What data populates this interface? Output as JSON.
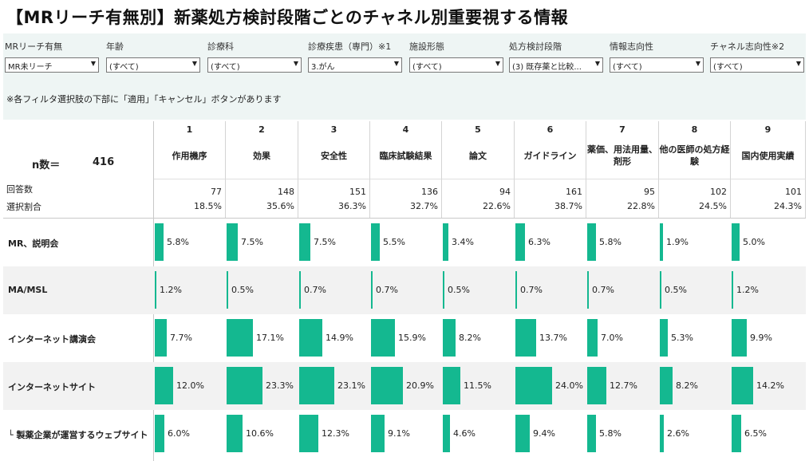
{
  "title": "【MRリーチ有無別】新薬処方検討段階ごとのチャネル別重要視する情報",
  "filters": [
    {
      "label": "MRリーチ有無",
      "value": "MR未リーチ"
    },
    {
      "label": "年齢",
      "value": "(すべて)"
    },
    {
      "label": "診療科",
      "value": "(すべて)"
    },
    {
      "label": "診療疾患（専門）※1",
      "value": "3.がん"
    },
    {
      "label": "施設形態",
      "value": "(すべて)"
    },
    {
      "label": "処方検討段階",
      "value": "(3) 既存薬と比較..."
    },
    {
      "label": "情報志向性",
      "value": "(すべて)"
    },
    {
      "label": "チャネル志向性※2",
      "value": "(すべて)"
    }
  ],
  "dropdown_arrow": "▼",
  "note": "※各フィルタ選択肢の下部に「適用」「キャンセル」ボタンがあります",
  "n_label": "n数＝",
  "n_value": "416",
  "respondents_label": "回答数",
  "ratio_label": "選択割合",
  "bar_color": "#14b890",
  "columns": [
    {
      "num": "1",
      "name": "作用機序",
      "count": "77",
      "ratio": "18.5%"
    },
    {
      "num": "2",
      "name": "効果",
      "count": "148",
      "ratio": "35.6%"
    },
    {
      "num": "3",
      "name": "安全性",
      "count": "151",
      "ratio": "36.3%"
    },
    {
      "num": "4",
      "name": "臨床試験結果",
      "count": "136",
      "ratio": "32.7%"
    },
    {
      "num": "5",
      "name": "論文",
      "count": "94",
      "ratio": "22.6%"
    },
    {
      "num": "6",
      "name": "ガイドライン",
      "count": "161",
      "ratio": "38.7%"
    },
    {
      "num": "7",
      "name": "薬価、用法用量、剤形",
      "count": "95",
      "ratio": "22.8%"
    },
    {
      "num": "8",
      "name": "他の医師の処方経験",
      "count": "102",
      "ratio": "24.5%"
    },
    {
      "num": "9",
      "name": "国内使用実績",
      "count": "101",
      "ratio": "24.3%"
    }
  ],
  "rows": [
    {
      "label": "MR、説明会",
      "values": [
        5.8,
        7.5,
        7.5,
        5.5,
        3.4,
        6.3,
        5.8,
        1.9,
        5.0
      ],
      "labels": [
        "5.8%",
        "7.5%",
        "7.5%",
        "5.5%",
        "3.4%",
        "6.3%",
        "5.8%",
        "1.9%",
        "5.0%"
      ]
    },
    {
      "label": "MA/MSL",
      "values": [
        1.2,
        0.5,
        0.7,
        0.7,
        0.5,
        0.7,
        0.7,
        0.5,
        1.2
      ],
      "labels": [
        "1.2%",
        "0.5%",
        "0.7%",
        "0.7%",
        "0.5%",
        "0.7%",
        "0.7%",
        "0.5%",
        "1.2%"
      ]
    },
    {
      "label": "インターネット講演会",
      "values": [
        7.7,
        17.1,
        14.9,
        15.9,
        8.2,
        13.7,
        7.0,
        5.3,
        9.9
      ],
      "labels": [
        "7.7%",
        "17.1%",
        "14.9%",
        "15.9%",
        "8.2%",
        "13.7%",
        "7.0%",
        "5.3%",
        "9.9%"
      ]
    },
    {
      "label": "インターネットサイト",
      "values": [
        12.0,
        23.3,
        23.1,
        20.9,
        11.5,
        24.0,
        12.7,
        8.2,
        14.2
      ],
      "labels": [
        "12.0%",
        "23.3%",
        "23.1%",
        "20.9%",
        "11.5%",
        "24.0%",
        "12.7%",
        "8.2%",
        "14.2%"
      ]
    },
    {
      "label": "└ 製薬企業が運営するウェブサイト",
      "values": [
        6.0,
        10.6,
        12.3,
        9.1,
        4.6,
        9.4,
        5.8,
        2.6,
        6.5
      ],
      "labels": [
        "6.0%",
        "10.6%",
        "12.3%",
        "9.1%",
        "4.6%",
        "9.4%",
        "5.8%",
        "2.6%",
        "6.5%"
      ]
    }
  ]
}
